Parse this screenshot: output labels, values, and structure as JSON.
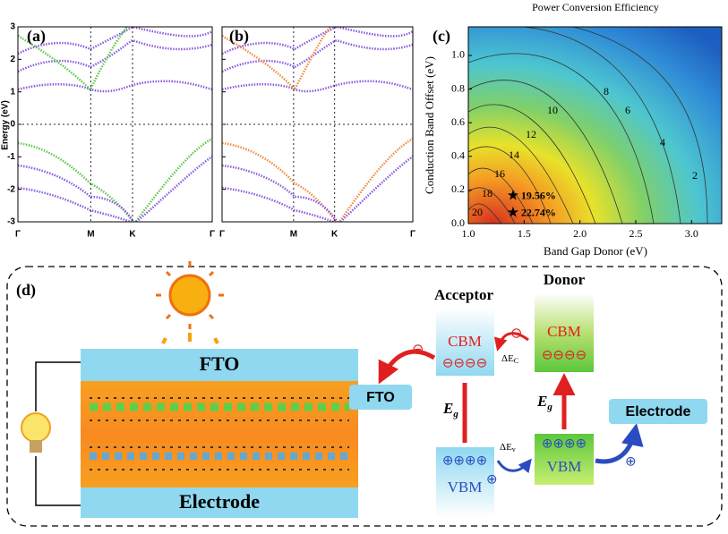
{
  "panel_a": {
    "label": "(a)",
    "y_label": "Energy (eV)",
    "ylim": [
      -3,
      3
    ],
    "yticks": [
      -3,
      -2,
      -1,
      0,
      1,
      2,
      3
    ],
    "k_points": [
      "Γ",
      "M",
      "K",
      "Γ"
    ]
  },
  "panel_b": {
    "label": "(b)",
    "ylim": [
      -3,
      3
    ],
    "yticks": [
      -3,
      -2,
      -1,
      0,
      1,
      2,
      3
    ],
    "k_points": [
      "Γ",
      "M",
      "K",
      "Γ"
    ]
  },
  "panel_c": {
    "label": "(c)",
    "title": "Power Conversion Efficiency",
    "x_label": "Band Gap Donor (eV)",
    "y_label": "Conduction Band Offset (eV)",
    "xlim": [
      1.0,
      3.27
    ],
    "xticks": [
      {
        "value": 1,
        "label": "1.0"
      },
      1.5,
      {
        "value": 2,
        "label": "2.0"
      },
      2.5,
      {
        "value": 3,
        "label": "3.0"
      }
    ],
    "ylim": [
      0,
      1.17
    ],
    "yticks": [
      {
        "value": 0,
        "label": "0.0"
      },
      0.2,
      0.4,
      0.6,
      0.8,
      {
        "value": 1,
        "label": "1.0"
      }
    ],
    "contour_labels": [
      2,
      4,
      6,
      8,
      10,
      12,
      14,
      16,
      18,
      20
    ],
    "points": [
      {
        "label": "19.56%",
        "x": 1.4,
        "y": 0.16
      },
      {
        "label": "22.74%",
        "x": 1.4,
        "y": 0.06
      }
    ]
  },
  "panel_d": {
    "label": "(d)",
    "fto": "FTO",
    "electrode": "Electrode",
    "acceptor": "Acceptor",
    "donor": "Donor",
    "cbm": "CBM",
    "vbm": "VBM",
    "eg": "E",
    "eg_sub": "g",
    "delta_e": "ΔE",
    "ec_sub": "C",
    "ev_sub": "v",
    "electrons": "⊖⊖⊖⊖",
    "holes": "⊕⊕⊕⊕",
    "electron": "⊖",
    "hole": "⊕"
  }
}
